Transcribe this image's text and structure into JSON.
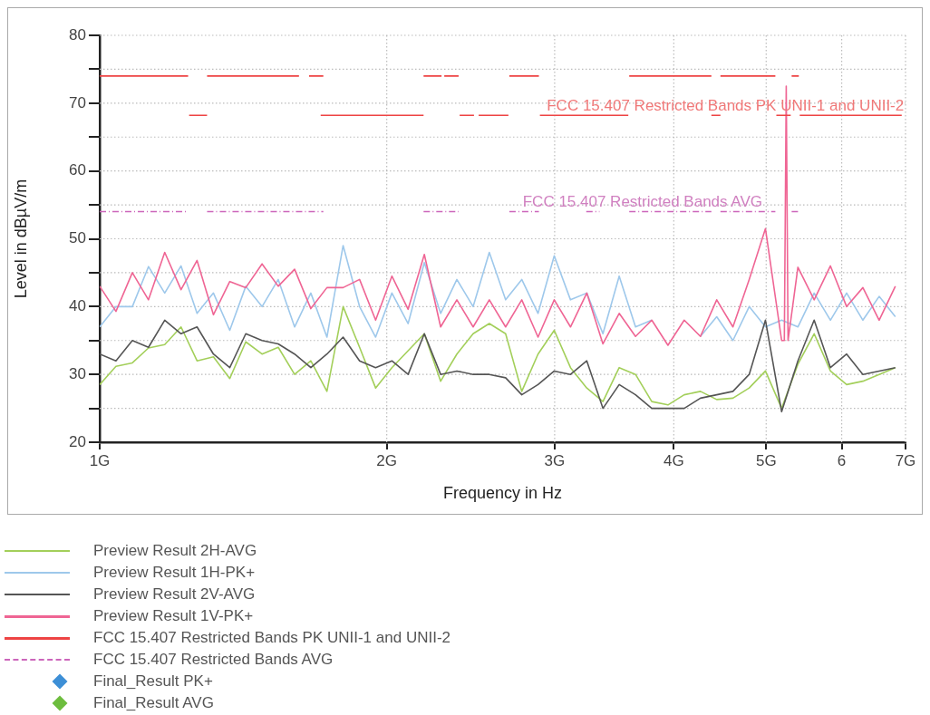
{
  "chart_data": {
    "type": "line",
    "xlabel": "Frequency in Hz",
    "ylabel": "Level in dBµV/m",
    "log": "x",
    "grid": true,
    "legend": "bottom",
    "marker": "none",
    "xlim": [
      1,
      7
    ],
    "xticks": [
      {
        "value": 1,
        "label": "1G"
      },
      {
        "value": 2,
        "label": "2G"
      },
      {
        "value": 3,
        "label": "3G"
      },
      {
        "value": 4,
        "label": "4G"
      },
      {
        "value": 5,
        "label": "5G"
      },
      6,
      {
        "value": 7,
        "label": "7G"
      }
    ],
    "ylim": [
      20,
      80
    ],
    "yticks": [
      20,
      {
        "value": 25,
        "label": null
      },
      30,
      {
        "value": 35,
        "label": null
      },
      40,
      {
        "value": 45,
        "label": null
      },
      50,
      {
        "value": 55,
        "label": null
      },
      60,
      {
        "value": 65,
        "label": null
      },
      70,
      {
        "value": 75,
        "label": null
      },
      80
    ],
    "x": [
      1,
      1.04,
      1.082,
      1.125,
      1.17,
      1.217,
      1.265,
      1.316,
      1.369,
      1.423,
      1.48,
      1.539,
      1.601,
      1.665,
      1.731,
      1.8,
      1.873,
      1.947,
      2.025,
      2.106,
      2.19,
      2.278,
      2.369,
      2.464,
      2.562,
      2.665,
      2.771,
      2.882,
      2.997,
      3.117,
      3.242,
      3.371,
      3.506,
      3.647,
      3.793,
      3.944,
      4.102,
      4.266,
      4.437,
      4.614,
      4.799,
      4.991,
      5.19,
      5.398,
      5.614,
      5.839,
      6.072,
      6.315,
      6.568,
      6.83
    ],
    "series": [
      {
        "name": "Preview Result 2H-AVG",
        "color": "#a3cf5a",
        "values": [
          28.5,
          31.2,
          31.7,
          33.9,
          34.4,
          37,
          32,
          32.6,
          29.4,
          34.8,
          33,
          34,
          30,
          32,
          27.5,
          40,
          34,
          28,
          31,
          33.5,
          36,
          29,
          33,
          36,
          37.5,
          36,
          27.5,
          33,
          36.5,
          31,
          28,
          26,
          31,
          30,
          26,
          25.5,
          27,
          27.5,
          26.3,
          26.5,
          28,
          30.5,
          25,
          31.5,
          36,
          30.5,
          28.5,
          29,
          30,
          31
        ]
      },
      {
        "name": "Preview Result 1H-PK+",
        "color": "#9ec8eb",
        "values": [
          37,
          40,
          40,
          45.9,
          42,
          46,
          39,
          42,
          36.5,
          43,
          40,
          44,
          37,
          42,
          35.5,
          49,
          40,
          35.5,
          42,
          37.5,
          46.5,
          39,
          44,
          40,
          48,
          41,
          44,
          39,
          47.5,
          41,
          42,
          36,
          44.5,
          37,
          38,
          null,
          null,
          35.6,
          38.5,
          35,
          40,
          37,
          38,
          37,
          42,
          38,
          42,
          38,
          41.5,
          38.5
        ]
      },
      {
        "name": "Preview Result 2V-AVG",
        "color": "#555555",
        "values": [
          33,
          32,
          35,
          34,
          38,
          36,
          37,
          33,
          31,
          36,
          35,
          34.5,
          33,
          31,
          33,
          35.5,
          32,
          31,
          32,
          30,
          36,
          30,
          30.5,
          30,
          30,
          29.5,
          27,
          28.5,
          30.5,
          30,
          32,
          25,
          28.5,
          27,
          25,
          25,
          25,
          26.5,
          27,
          27.5,
          30,
          38,
          24.5,
          32,
          38,
          31,
          33,
          30,
          30.5,
          31
        ]
      },
      {
        "name": "Preview Result 1V-PK+",
        "color": "#ef6594",
        "x": [
          1,
          1.04,
          1.082,
          1.125,
          1.17,
          1.217,
          1.265,
          1.316,
          1.369,
          1.423,
          1.48,
          1.539,
          1.601,
          1.665,
          1.731,
          1.8,
          1.873,
          1.947,
          2.025,
          2.106,
          2.19,
          2.278,
          2.369,
          2.464,
          2.562,
          2.665,
          2.771,
          2.882,
          2.997,
          3.117,
          3.242,
          3.371,
          3.506,
          3.647,
          3.793,
          3.944,
          4.102,
          4.266,
          4.437,
          4.614,
          4.799,
          4.991,
          5.19,
          5.224,
          5.248,
          5.271,
          5.398,
          5.614,
          5.839,
          6.072,
          6.315,
          6.568,
          6.83
        ],
        "values": [
          43,
          39.3,
          45,
          41,
          48,
          42.5,
          46.8,
          38.8,
          43.7,
          42.8,
          46.3,
          43,
          45.5,
          39.7,
          42.8,
          42.8,
          44,
          38,
          44.5,
          39.6,
          47.7,
          37,
          41,
          37,
          41,
          37,
          41,
          35.5,
          41,
          37,
          42,
          34.5,
          39,
          35.6,
          38,
          34.3,
          38,
          35.6,
          41,
          37,
          44,
          51.5,
          35,
          35,
          72.5,
          35,
          45.8,
          41,
          46,
          40,
          42.8,
          38,
          43
        ]
      },
      {
        "name": "FCC 15.407 Restricted Bands PK UNII-1 and UNII-2",
        "color": "#ee4444",
        "line_style": "solid",
        "x": [
          1,
          1.238,
          null,
          1.241,
          1.296,
          null,
          1.296,
          1.618,
          null,
          1.658,
          1.716,
          null,
          1.705,
          2.186,
          null,
          2.186,
          2.283,
          null,
          2.298,
          2.379,
          null,
          2.385,
          2.469,
          null,
          2.497,
          2.683,
          null,
          2.689,
          2.888,
          null,
          2.895,
          3.584,
          null,
          3.592,
          4.38,
          null,
          4.38,
          4.477,
          null,
          4.477,
          5.112,
          null,
          5.124,
          5.305,
          null,
          5.317,
          5.41,
          null,
          5.422,
          6.936
        ],
        "values": [
          74,
          74,
          null,
          68.2,
          68.2,
          null,
          74,
          74,
          null,
          74,
          74,
          null,
          68.2,
          68.2,
          null,
          74,
          74,
          null,
          74,
          74,
          null,
          68.2,
          68.2,
          null,
          68.2,
          68.2,
          null,
          74,
          74,
          null,
          68.2,
          68.2,
          null,
          74,
          74,
          null,
          68.2,
          68.2,
          null,
          74,
          74,
          null,
          68.2,
          68.2,
          null,
          74,
          74,
          null,
          68.2,
          68.2
        ]
      },
      {
        "name": "FCC 15.407 Restricted Bands AVG",
        "color": "#cc66bb",
        "line_style": "dashed",
        "x": [
          1,
          1.238,
          null,
          1.296,
          1.716,
          null,
          2.186,
          2.379,
          null,
          2.689,
          2.888,
          null,
          3.238,
          3.343,
          null,
          3.592,
          4.38,
          null,
          4.477,
          5.112,
          null,
          5.317,
          5.41
        ],
        "values": [
          54,
          54,
          null,
          54,
          54,
          null,
          54,
          54,
          null,
          54,
          54,
          null,
          54,
          54,
          null,
          54,
          54,
          null,
          54,
          54,
          null,
          54,
          54
        ]
      },
      {
        "name": "Final_Result PK+",
        "type": "scatter",
        "color": "#3d8fd6",
        "marker": "diamond",
        "values": [
          null,
          null,
          null,
          null,
          null,
          null,
          null,
          null,
          null,
          null,
          null,
          null,
          null,
          null,
          null,
          null,
          null,
          null,
          null,
          null,
          null,
          null,
          null,
          null,
          null,
          null,
          null,
          null,
          null,
          null,
          null,
          null,
          null,
          null,
          null,
          null,
          null,
          null,
          null,
          null,
          null,
          null,
          null,
          null,
          null,
          null,
          null,
          null,
          null,
          null
        ]
      },
      {
        "name": "Final_Result AVG",
        "type": "scatter",
        "color": "#6dbd3e",
        "marker": "diamond",
        "values": [
          null,
          null,
          null,
          null,
          null,
          null,
          null,
          null,
          null,
          null,
          null,
          null,
          null,
          null,
          null,
          null,
          null,
          null,
          null,
          null,
          null,
          null,
          null,
          null,
          null,
          null,
          null,
          null,
          null,
          null,
          null,
          null,
          null,
          null,
          null,
          null,
          null,
          null,
          null,
          null,
          null,
          null,
          null,
          null,
          null,
          null,
          null,
          null,
          null,
          null
        ]
      }
    ],
    "annotations": [
      "FCC 15.407 Restricted Bands PK UNII-1 and UNII-2",
      "FCC 15.407 Restricted Bands AVG"
    ]
  }
}
